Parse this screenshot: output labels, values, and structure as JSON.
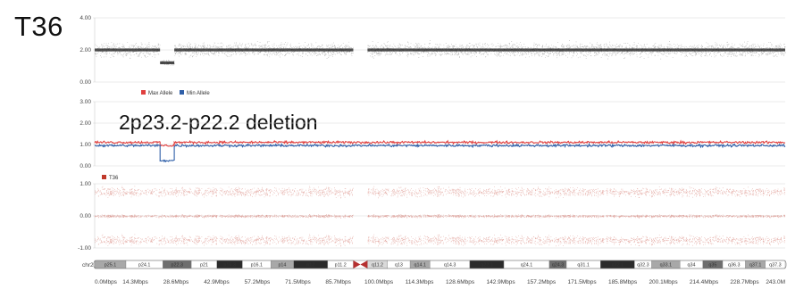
{
  "sample": "T36",
  "annotation": "2p23.2-p22.2 deletion",
  "colors": {
    "max_allele": "#e0403f",
    "min_allele": "#2f5fa8",
    "lrr_points": "#1a1a1a",
    "t36_points": "#c0392b",
    "grid": "#d8d8d8",
    "centromere": "#b53030"
  },
  "chart_data": [
    {
      "type": "scatter",
      "panel": "log-ratio",
      "ylim": [
        0,
        4
      ],
      "yticks": [
        "4.00",
        "2.00",
        "0.00"
      ],
      "xlim": [
        0,
        243
      ],
      "baseline": 2.0,
      "segments": [
        {
          "x_start": 0,
          "x_end": 23,
          "y": 2.0
        },
        {
          "x_start": 23,
          "x_end": 28,
          "y": 1.2
        },
        {
          "x_start": 28,
          "x_end": 91,
          "y": 2.0
        },
        {
          "x_start": 96,
          "x_end": 243,
          "y": 2.0
        }
      ],
      "grid": true
    },
    {
      "type": "line",
      "panel": "allele-specific",
      "ylim": [
        0,
        3
      ],
      "yticks": [
        "3.00",
        "2.00",
        "1.00",
        "0.00"
      ],
      "xlim": [
        0,
        243
      ],
      "legend_position": "top-left",
      "series": [
        {
          "name": "Max Allele",
          "segments": [
            {
              "x_start": 0,
              "x_end": 23,
              "y": 1.1
            },
            {
              "x_start": 23,
              "x_end": 28,
              "y": 0.95
            },
            {
              "x_start": 28,
              "x_end": 243,
              "y": 1.1
            }
          ]
        },
        {
          "name": "Min Allele",
          "segments": [
            {
              "x_start": 0,
              "x_end": 23,
              "y": 0.95
            },
            {
              "x_start": 23,
              "x_end": 28,
              "y": 0.25
            },
            {
              "x_start": 28,
              "x_end": 243,
              "y": 0.95
            }
          ]
        }
      ],
      "grid": true
    },
    {
      "type": "scatter",
      "panel": "t36",
      "ylim": [
        -1,
        1
      ],
      "yticks": [
        "1.00",
        "0.00",
        "-1.00"
      ],
      "xlim": [
        0,
        243
      ],
      "legend_position": "top-left",
      "series": [
        {
          "name": "T36",
          "bands": [
            0.75,
            0.0,
            -0.75
          ]
        }
      ],
      "gap": [
        91,
        96
      ],
      "grid": true
    }
  ],
  "ideogram": {
    "label": "chr2",
    "bands": [
      {
        "name": "p25.1",
        "start": 0,
        "end": 11,
        "stain": "gpos50"
      },
      {
        "name": "p24.1",
        "start": 11,
        "end": 24,
        "stain": "gneg"
      },
      {
        "name": "p22.3",
        "start": 24,
        "end": 34,
        "stain": "gpos75"
      },
      {
        "name": "p21",
        "start": 34,
        "end": 43,
        "stain": "gneg"
      },
      {
        "name": "p16.3",
        "start": 43,
        "end": 52,
        "stain": "gpos100"
      },
      {
        "name": "p16.1",
        "start": 52,
        "end": 62,
        "stain": "gneg"
      },
      {
        "name": "p14",
        "start": 62,
        "end": 70,
        "stain": "gpos50"
      },
      {
        "name": "p12",
        "start": 70,
        "end": 82,
        "stain": "gpos100"
      },
      {
        "name": "p11.2",
        "start": 82,
        "end": 91,
        "stain": "gneg"
      },
      {
        "name": "q11.2",
        "start": 96,
        "end": 103,
        "stain": "gpos25"
      },
      {
        "name": "q13",
        "start": 103,
        "end": 111,
        "stain": "gneg"
      },
      {
        "name": "q14.1",
        "start": 111,
        "end": 118,
        "stain": "gpos50"
      },
      {
        "name": "q14.3",
        "start": 118,
        "end": 132,
        "stain": "gneg"
      },
      {
        "name": "q22.1",
        "start": 132,
        "end": 144,
        "stain": "gpos100"
      },
      {
        "name": "q24.1",
        "start": 144,
        "end": 160,
        "stain": "gneg"
      },
      {
        "name": "q24.3",
        "start": 160,
        "end": 166,
        "stain": "gpos75"
      },
      {
        "name": "q31.1",
        "start": 166,
        "end": 178,
        "stain": "gneg"
      },
      {
        "name": "q32.1",
        "start": 178,
        "end": 190,
        "stain": "gpos100"
      },
      {
        "name": "q32.3",
        "start": 190,
        "end": 196,
        "stain": "gneg"
      },
      {
        "name": "q33.1",
        "start": 196,
        "end": 206,
        "stain": "gpos50"
      },
      {
        "name": "q34",
        "start": 206,
        "end": 214,
        "stain": "gneg"
      },
      {
        "name": "q35",
        "start": 214,
        "end": 221,
        "stain": "gpos75"
      },
      {
        "name": "q36.3",
        "start": 221,
        "end": 229,
        "stain": "gneg"
      },
      {
        "name": "q37.1",
        "start": 229,
        "end": 236,
        "stain": "gpos50"
      },
      {
        "name": "q37.3",
        "start": 236,
        "end": 243,
        "stain": "gneg"
      }
    ],
    "centromere": [
      91,
      96
    ]
  },
  "x_axis": {
    "ticks": [
      {
        "pos": 0,
        "label": "0.0Mbps"
      },
      {
        "pos": 14.3,
        "label": "14.3Mbps"
      },
      {
        "pos": 28.6,
        "label": "28.6Mbps"
      },
      {
        "pos": 42.9,
        "label": "42.9Mbps"
      },
      {
        "pos": 57.2,
        "label": "57.2Mbps"
      },
      {
        "pos": 71.5,
        "label": "71.5Mbps"
      },
      {
        "pos": 85.7,
        "label": "85.7Mbps"
      },
      {
        "pos": 100.0,
        "label": "100.0Mbps"
      },
      {
        "pos": 114.3,
        "label": "114.3Mbps"
      },
      {
        "pos": 128.6,
        "label": "128.6Mbps"
      },
      {
        "pos": 142.9,
        "label": "142.9Mbps"
      },
      {
        "pos": 157.2,
        "label": "157.2Mbps"
      },
      {
        "pos": 171.5,
        "label": "171.5Mbps"
      },
      {
        "pos": 185.8,
        "label": "185.8Mbps"
      },
      {
        "pos": 200.1,
        "label": "200.1Mbps"
      },
      {
        "pos": 214.4,
        "label": "214.4Mbps"
      },
      {
        "pos": 228.7,
        "label": "228.7Mbps"
      },
      {
        "pos": 243.0,
        "label": "243.0M"
      }
    ]
  }
}
